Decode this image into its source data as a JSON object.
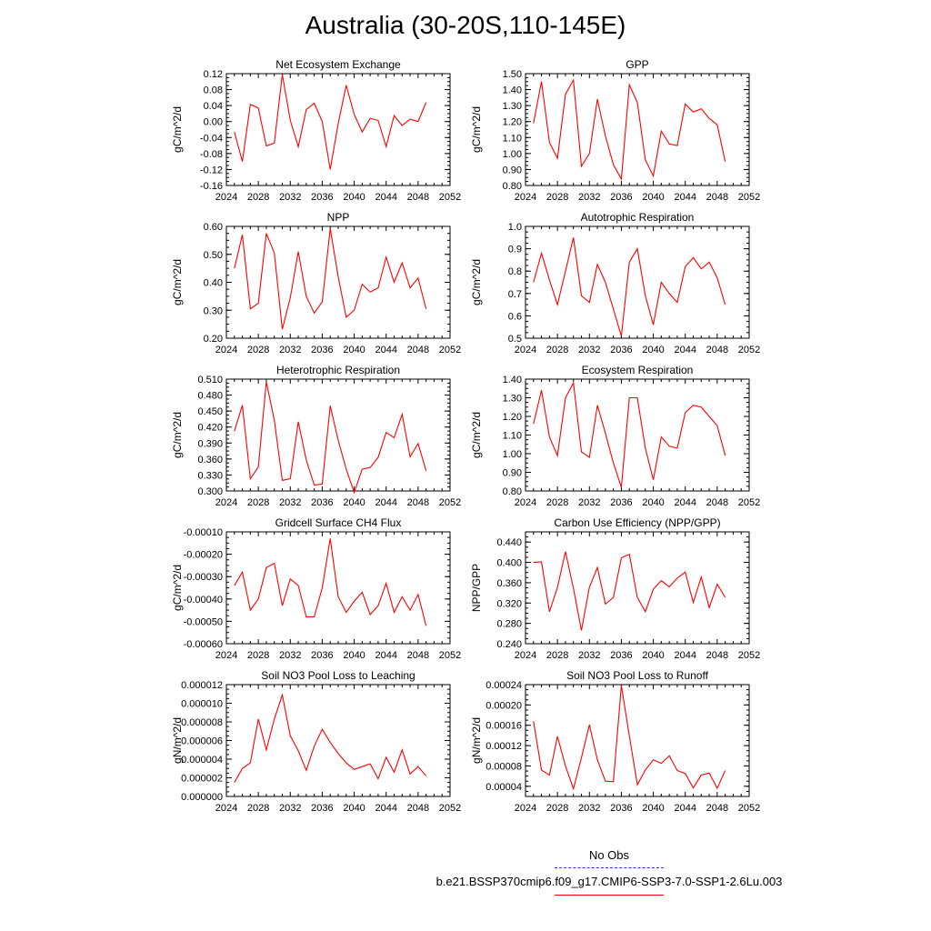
{
  "title": "Australia (30-20S,110-145E)",
  "legend": {
    "entries": [
      {
        "label": "No Obs",
        "color": "#3333cc",
        "style": "dashed"
      },
      {
        "label": "b.e21.BSSP370cmip6.f09_g17.CMIP6-SSP3-7.0-SSP1-2.6Lu.003",
        "color": "#ff0000",
        "style": "solid"
      }
    ],
    "placement": "bottom-right"
  },
  "chart_data": [
    {
      "type": "line",
      "title": "Net Ecosystem Exchange",
      "ylabel": "gC/m^2/d",
      "xlim": [
        2024,
        2052
      ],
      "ylim": [
        -0.16,
        0.12
      ],
      "xticks": [
        "2024",
        "2028",
        "2032",
        "2036",
        "2040",
        "2044",
        "2048",
        "2052"
      ],
      "yticks": [
        "-0.16",
        "-0.12",
        "-0.08",
        "-0.04",
        "0.00",
        "0.04",
        "0.08",
        "0.12"
      ],
      "x": [
        2025,
        2026,
        2027,
        2028,
        2029,
        2030,
        2031,
        2032,
        2033,
        2034,
        2035,
        2036,
        2037,
        2038,
        2039,
        2040,
        2041,
        2042,
        2043,
        2044,
        2045,
        2046,
        2047,
        2048,
        2049
      ],
      "series": [
        {
          "color": "#ff0000",
          "values": [
            -0.026,
            -0.1,
            0.043,
            0.034,
            -0.061,
            -0.054,
            0.118,
            0.003,
            -0.063,
            0.03,
            0.046,
            0.0,
            -0.12,
            -0.005,
            0.091,
            0.018,
            -0.026,
            0.008,
            0.003,
            -0.063,
            0.015,
            -0.01,
            0.006,
            0.0,
            0.048
          ]
        }
      ]
    },
    {
      "type": "line",
      "title": "GPP",
      "ylabel": "gC/m^2/d",
      "xlim": [
        2024,
        2052
      ],
      "ylim": [
        0.8,
        1.5
      ],
      "xticks": [
        "2024",
        "2028",
        "2032",
        "2036",
        "2040",
        "2044",
        "2048",
        "2052"
      ],
      "yticks": [
        "0.80",
        "0.90",
        "1.00",
        "1.10",
        "1.20",
        "1.30",
        "1.40",
        "1.50"
      ],
      "x": [
        2025,
        2026,
        2027,
        2028,
        2029,
        2030,
        2031,
        2032,
        2033,
        2034,
        2035,
        2036,
        2037,
        2038,
        2039,
        2040,
        2041,
        2042,
        2043,
        2044,
        2045,
        2046,
        2047,
        2048,
        2049
      ],
      "series": [
        {
          "color": "#ff0000",
          "values": [
            1.19,
            1.45,
            1.07,
            0.97,
            1.37,
            1.46,
            0.92,
            1.0,
            1.34,
            1.11,
            0.93,
            0.84,
            1.43,
            1.32,
            0.96,
            0.86,
            1.14,
            1.06,
            1.05,
            1.31,
            1.26,
            1.28,
            1.22,
            1.18,
            0.95
          ]
        }
      ]
    },
    {
      "type": "line",
      "title": "NPP",
      "ylabel": "gC/m^2/d",
      "xlim": [
        2024,
        2052
      ],
      "ylim": [
        0.2,
        0.6
      ],
      "xticks": [
        "2024",
        "2028",
        "2032",
        "2036",
        "2040",
        "2044",
        "2048",
        "2052"
      ],
      "yticks": [
        "0.20",
        "0.30",
        "0.40",
        "0.50",
        "0.60"
      ],
      "x": [
        2025,
        2026,
        2027,
        2028,
        2029,
        2030,
        2031,
        2032,
        2033,
        2034,
        2035,
        2036,
        2037,
        2038,
        2039,
        2040,
        2041,
        2042,
        2043,
        2044,
        2045,
        2046,
        2047,
        2048,
        2049
      ],
      "series": [
        {
          "color": "#ff0000",
          "values": [
            0.45,
            0.57,
            0.305,
            0.325,
            0.575,
            0.505,
            0.232,
            0.345,
            0.51,
            0.35,
            0.29,
            0.33,
            0.592,
            0.42,
            0.275,
            0.3,
            0.393,
            0.365,
            0.38,
            0.49,
            0.4,
            0.47,
            0.38,
            0.415,
            0.305
          ]
        }
      ]
    },
    {
      "type": "line",
      "title": "Autotrophic Respiration",
      "ylabel": "gC/m^2/d",
      "xlim": [
        2024,
        2052
      ],
      "ylim": [
        0.5,
        1.0
      ],
      "xticks": [
        "2024",
        "2028",
        "2032",
        "2036",
        "2040",
        "2044",
        "2048",
        "2052"
      ],
      "yticks": [
        "0.5",
        "0.6",
        "0.7",
        "0.8",
        "0.9",
        "1.0"
      ],
      "x": [
        2025,
        2026,
        2027,
        2028,
        2029,
        2030,
        2031,
        2032,
        2033,
        2034,
        2035,
        2036,
        2037,
        2038,
        2039,
        2040,
        2041,
        2042,
        2043,
        2044,
        2045,
        2046,
        2047,
        2048,
        2049
      ],
      "series": [
        {
          "color": "#ff0000",
          "values": [
            0.75,
            0.88,
            0.76,
            0.65,
            0.8,
            0.95,
            0.69,
            0.66,
            0.83,
            0.75,
            0.63,
            0.51,
            0.84,
            0.9,
            0.69,
            0.56,
            0.75,
            0.7,
            0.66,
            0.82,
            0.86,
            0.81,
            0.84,
            0.77,
            0.65
          ]
        }
      ]
    },
    {
      "type": "line",
      "title": "Heterotrophic Respiration",
      "ylabel": "gC/m^2/d",
      "xlim": [
        2024,
        2052
      ],
      "ylim": [
        0.3,
        0.51
      ],
      "xticks": [
        "2024",
        "2028",
        "2032",
        "2036",
        "2040",
        "2044",
        "2048",
        "2052"
      ],
      "yticks": [
        "0.300",
        "0.330",
        "0.360",
        "0.390",
        "0.420",
        "0.450",
        "0.480",
        "0.510"
      ],
      "x": [
        2025,
        2026,
        2027,
        2028,
        2029,
        2030,
        2031,
        2032,
        2033,
        2034,
        2035,
        2036,
        2037,
        2038,
        2039,
        2040,
        2041,
        2042,
        2043,
        2044,
        2045,
        2046,
        2047,
        2048,
        2049
      ],
      "series": [
        {
          "color": "#ff0000",
          "values": [
            0.412,
            0.461,
            0.323,
            0.345,
            0.505,
            0.433,
            0.32,
            0.323,
            0.43,
            0.358,
            0.311,
            0.313,
            0.46,
            0.395,
            0.341,
            0.297,
            0.341,
            0.344,
            0.363,
            0.41,
            0.4,
            0.444,
            0.364,
            0.389,
            0.338
          ]
        }
      ]
    },
    {
      "type": "line",
      "title": "Ecosystem Respiration",
      "ylabel": "gC/m^2/d",
      "xlim": [
        2024,
        2052
      ],
      "ylim": [
        0.8,
        1.4
      ],
      "xticks": [
        "2024",
        "2028",
        "2032",
        "2036",
        "2040",
        "2044",
        "2048",
        "2052"
      ],
      "yticks": [
        "0.80",
        "0.90",
        "1.00",
        "1.10",
        "1.20",
        "1.30",
        "1.40"
      ],
      "x": [
        2025,
        2026,
        2027,
        2028,
        2029,
        2030,
        2031,
        2032,
        2033,
        2034,
        2035,
        2036,
        2037,
        2038,
        2039,
        2040,
        2041,
        2042,
        2043,
        2044,
        2045,
        2046,
        2047,
        2048,
        2049
      ],
      "series": [
        {
          "color": "#ff0000",
          "values": [
            1.16,
            1.34,
            1.09,
            0.99,
            1.3,
            1.38,
            1.01,
            0.98,
            1.26,
            1.11,
            0.95,
            0.82,
            1.3,
            1.3,
            1.03,
            0.86,
            1.09,
            1.04,
            1.03,
            1.22,
            1.26,
            1.25,
            1.2,
            1.15,
            0.99
          ]
        }
      ]
    },
    {
      "type": "line",
      "title": "Gridcell Surface CH4 Flux",
      "ylabel": "gC/m^2/d",
      "xlim": [
        2024,
        2052
      ],
      "ylim": [
        -0.0006,
        -0.0001
      ],
      "xticks": [
        "2024",
        "2028",
        "2032",
        "2036",
        "2040",
        "2044",
        "2048",
        "2052"
      ],
      "yticks": [
        "-0.00060",
        "-0.00050",
        "-0.00040",
        "-0.00030",
        "-0.00020",
        "-0.00010"
      ],
      "x": [
        2025,
        2026,
        2027,
        2028,
        2029,
        2030,
        2031,
        2032,
        2033,
        2034,
        2035,
        2036,
        2037,
        2038,
        2039,
        2040,
        2041,
        2042,
        2043,
        2044,
        2045,
        2046,
        2047,
        2048,
        2049
      ],
      "series": [
        {
          "color": "#ff0000",
          "values": [
            -0.00034,
            -0.00028,
            -0.00045,
            -0.0004,
            -0.00026,
            -0.00024,
            -0.00043,
            -0.00031,
            -0.00034,
            -0.00048,
            -0.00048,
            -0.00035,
            -0.00013,
            -0.00039,
            -0.00046,
            -0.00041,
            -0.00037,
            -0.00047,
            -0.00043,
            -0.00033,
            -0.00046,
            -0.00039,
            -0.00045,
            -0.00038,
            -0.00052
          ]
        }
      ]
    },
    {
      "type": "line",
      "title": "Carbon Use Efficiency (NPP/GPP)",
      "ylabel": "NPP/GPP",
      "xlim": [
        2024,
        2052
      ],
      "ylim": [
        0.24,
        0.46
      ],
      "xticks": [
        "2024",
        "2028",
        "2032",
        "2036",
        "2040",
        "2044",
        "2048",
        "2052"
      ],
      "yticks": [
        "0.240",
        "0.280",
        "0.320",
        "0.360",
        "0.400",
        "0.440"
      ],
      "x": [
        2025,
        2026,
        2027,
        2028,
        2029,
        2030,
        2031,
        2032,
        2033,
        2034,
        2035,
        2036,
        2037,
        2038,
        2039,
        2040,
        2041,
        2042,
        2043,
        2044,
        2045,
        2046,
        2047,
        2048,
        2049
      ],
      "series": [
        {
          "color": "#ff0000",
          "values": [
            0.4,
            0.401,
            0.303,
            0.351,
            0.421,
            0.349,
            0.266,
            0.351,
            0.39,
            0.318,
            0.331,
            0.409,
            0.416,
            0.331,
            0.303,
            0.347,
            0.364,
            0.352,
            0.369,
            0.381,
            0.321,
            0.371,
            0.311,
            0.357,
            0.331
          ]
        }
      ]
    },
    {
      "type": "line",
      "title": "Soil NO3 Pool Loss to Leaching",
      "ylabel": "gN/m^2/d",
      "xlim": [
        2024,
        2052
      ],
      "ylim": [
        0.0,
        1.2e-05
      ],
      "xticks": [
        "2024",
        "2028",
        "2032",
        "2036",
        "2040",
        "2044",
        "2048",
        "2052"
      ],
      "yticks": [
        "0.000000",
        "0.000002",
        "0.000004",
        "0.000006",
        "0.000008",
        "0.000010",
        "0.000012"
      ],
      "x": [
        2025,
        2026,
        2027,
        2028,
        2029,
        2030,
        2031,
        2032,
        2033,
        2034,
        2035,
        2036,
        2037,
        2038,
        2039,
        2040,
        2041,
        2042,
        2043,
        2044,
        2045,
        2046,
        2047,
        2048,
        2049
      ],
      "series": [
        {
          "color": "#ff0000",
          "values": [
            1.5e-06,
            3e-06,
            3.6e-06,
            8.3e-06,
            5e-06,
            8.3e-06,
            1.09e-05,
            6.5e-06,
            4.9e-06,
            2.8e-06,
            5.4e-06,
            7.2e-06,
            5.8e-06,
            4.6e-06,
            3.6e-06,
            2.9e-06,
            3.2e-06,
            3.5e-06,
            1.9e-06,
            4.2e-06,
            2.6e-06,
            5e-06,
            2.4e-06,
            3.2e-06,
            2.2e-06
          ]
        }
      ]
    },
    {
      "type": "line",
      "title": "Soil NO3 Pool Loss to Runoff",
      "ylabel": "gN/m^2/d",
      "xlim": [
        2024,
        2052
      ],
      "ylim": [
        2e-05,
        0.00024
      ],
      "xticks": [
        "2024",
        "2028",
        "2032",
        "2036",
        "2040",
        "2044",
        "2048",
        "2052"
      ],
      "yticks": [
        "0.00004",
        "0.00008",
        "0.00012",
        "0.00016",
        "0.00020",
        "0.00024"
      ],
      "x": [
        2025,
        2026,
        2027,
        2028,
        2029,
        2030,
        2031,
        2032,
        2033,
        2034,
        2035,
        2036,
        2037,
        2038,
        2039,
        2040,
        2041,
        2042,
        2043,
        2044,
        2045,
        2046,
        2047,
        2048,
        2049
      ],
      "series": [
        {
          "color": "#ff0000",
          "values": [
            0.000168,
            7.2e-05,
            6.2e-05,
            0.000138,
            8e-05,
            3.5e-05,
            9.6e-05,
            0.000161,
            9.2e-05,
            5e-05,
            4.9e-05,
            0.000238,
            0.000139,
            4.3e-05,
            7.2e-05,
            9.2e-05,
            8.5e-05,
            0.0001,
            7.1e-05,
            6.5e-05,
            3.7e-05,
            6.2e-05,
            6.6e-05,
            3.6e-05,
            7.1e-05
          ]
        }
      ]
    }
  ]
}
